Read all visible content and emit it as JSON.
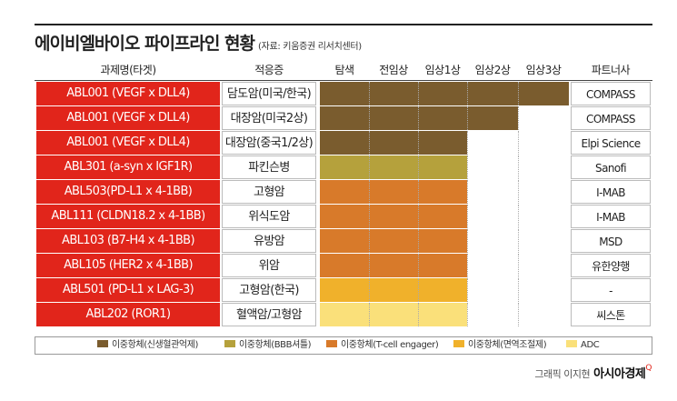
{
  "title": "에이비엘바이오 파이프라인 현황",
  "source": "(자료: 키움증권 리서치센터)",
  "headers": {
    "target": "과제명(타겟)",
    "indication": "적응증",
    "stages": [
      "탐색",
      "전임상",
      "임상1상",
      "임상2상",
      "임상3상"
    ],
    "partner": "파트너사"
  },
  "chart_data": {
    "type": "bar",
    "stages": [
      "탐색",
      "전임상",
      "임상1상",
      "임상2상",
      "임상3상"
    ],
    "rows": [
      {
        "target": "ABL001 (VEGF x DLL4)",
        "indication": "담도암(미국/한국)",
        "stage_reached": 5,
        "category": "이중항체(신생혈관억제)",
        "partner": "COMPASS"
      },
      {
        "target": "ABL001 (VEGF x DLL4)",
        "indication": "대장암(미국2상)",
        "stage_reached": 4,
        "category": "이중항체(신생혈관억제)",
        "partner": "COMPASS"
      },
      {
        "target": "ABL001 (VEGF x DLL4)",
        "indication": "대장암(중국1/2상)",
        "stage_reached": 3,
        "category": "이중항체(신생혈관억제)",
        "partner": "Elpi Science"
      },
      {
        "target": "ABL301 (a-syn x IGF1R)",
        "indication": "파킨슨병",
        "stage_reached": 3,
        "category": "이중항체(BBB셔틀)",
        "partner": "Sanofi"
      },
      {
        "target": "ABL503(PD-L1 x 4-1BB)",
        "indication": "고형암",
        "stage_reached": 3,
        "category": "이중항체(T-cell engager)",
        "partner": "I-MAB"
      },
      {
        "target": "ABL111 (CLDN18.2 x 4-1BB)",
        "indication": "위식도암",
        "stage_reached": 3,
        "category": "이중항체(T-cell engager)",
        "partner": "I-MAB"
      },
      {
        "target": "ABL103 (B7-H4 x 4-1BB)",
        "indication": "유방암",
        "stage_reached": 3,
        "category": "이중항체(T-cell engager)",
        "partner": "MSD"
      },
      {
        "target": "ABL105 (HER2 x 4-1BB)",
        "indication": "위암",
        "stage_reached": 3,
        "category": "이중항체(T-cell engager)",
        "partner": "유한양행"
      },
      {
        "target": "ABL501 (PD-L1 x LAG-3)",
        "indication": "고형암(한국)",
        "stage_reached": 3,
        "category": "이중항체(면역조절제)",
        "partner": "-"
      },
      {
        "target": "ABL202 (ROR1)",
        "indication": "혈액암/고형암",
        "stage_reached": 3,
        "category": "ADC",
        "partner": "씨스톤"
      }
    ],
    "legend": [
      {
        "label": "이중항체(신생혈관억제)",
        "color": "#7a5c2e"
      },
      {
        "label": "이중항체(BBB셔틀)",
        "color": "#b5a13c"
      },
      {
        "label": "이중항체(T-cell engager)",
        "color": "#d87a2a"
      },
      {
        "label": "이중항체(면역조절제)",
        "color": "#f0b12b"
      },
      {
        "label": "ADC",
        "color": "#fae07a"
      }
    ]
  },
  "credit": {
    "text": "그래픽 이지현",
    "brand": "아시아경제",
    "mark": "Q"
  }
}
